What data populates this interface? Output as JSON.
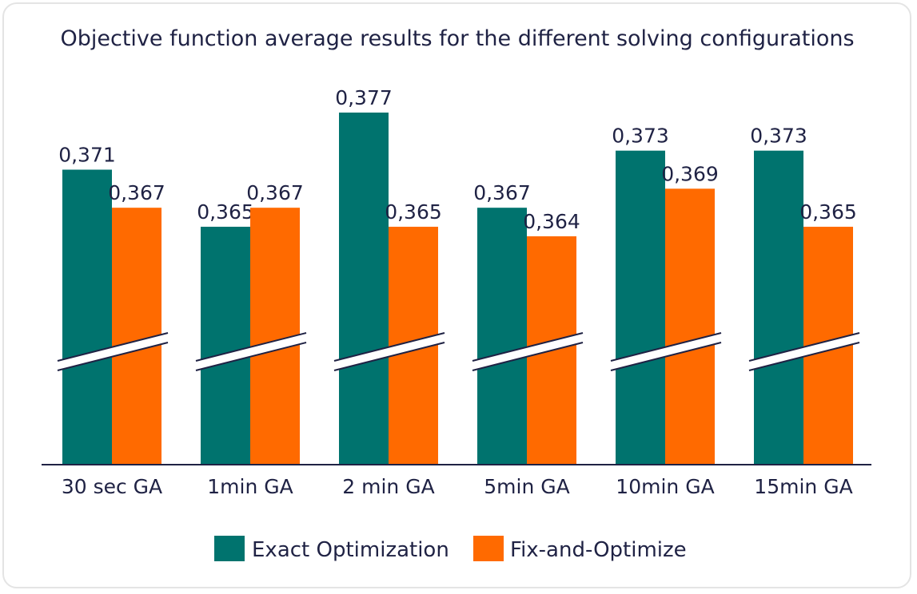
{
  "chart_data": {
    "type": "bar",
    "title": "Objective function average results for the different solving configurations",
    "categories": [
      "30 sec GA",
      "1min GA",
      "2 min GA",
      "5min GA",
      "10min GA",
      "15min GA"
    ],
    "series": [
      {
        "name": "Exact Optimization",
        "color": "#00736e",
        "values": [
          0.371,
          0.365,
          0.377,
          0.367,
          0.373,
          0.373
        ],
        "labels": [
          "0,371",
          "0,365",
          "0,377",
          "0,367",
          "0,373",
          "0,373"
        ]
      },
      {
        "name": "Fix-and-Optimize",
        "color": "#ff6a00",
        "values": [
          0.367,
          0.367,
          0.365,
          0.364,
          0.369,
          0.365
        ],
        "labels": [
          "0,367",
          "0,367",
          "0,365",
          "0,364",
          "0,369",
          "0,365"
        ]
      }
    ],
    "xlabel": "",
    "ylabel": "",
    "ylim": [
      0.34,
      0.377
    ],
    "axis_break": true,
    "legend": "bottom",
    "grid": false
  }
}
